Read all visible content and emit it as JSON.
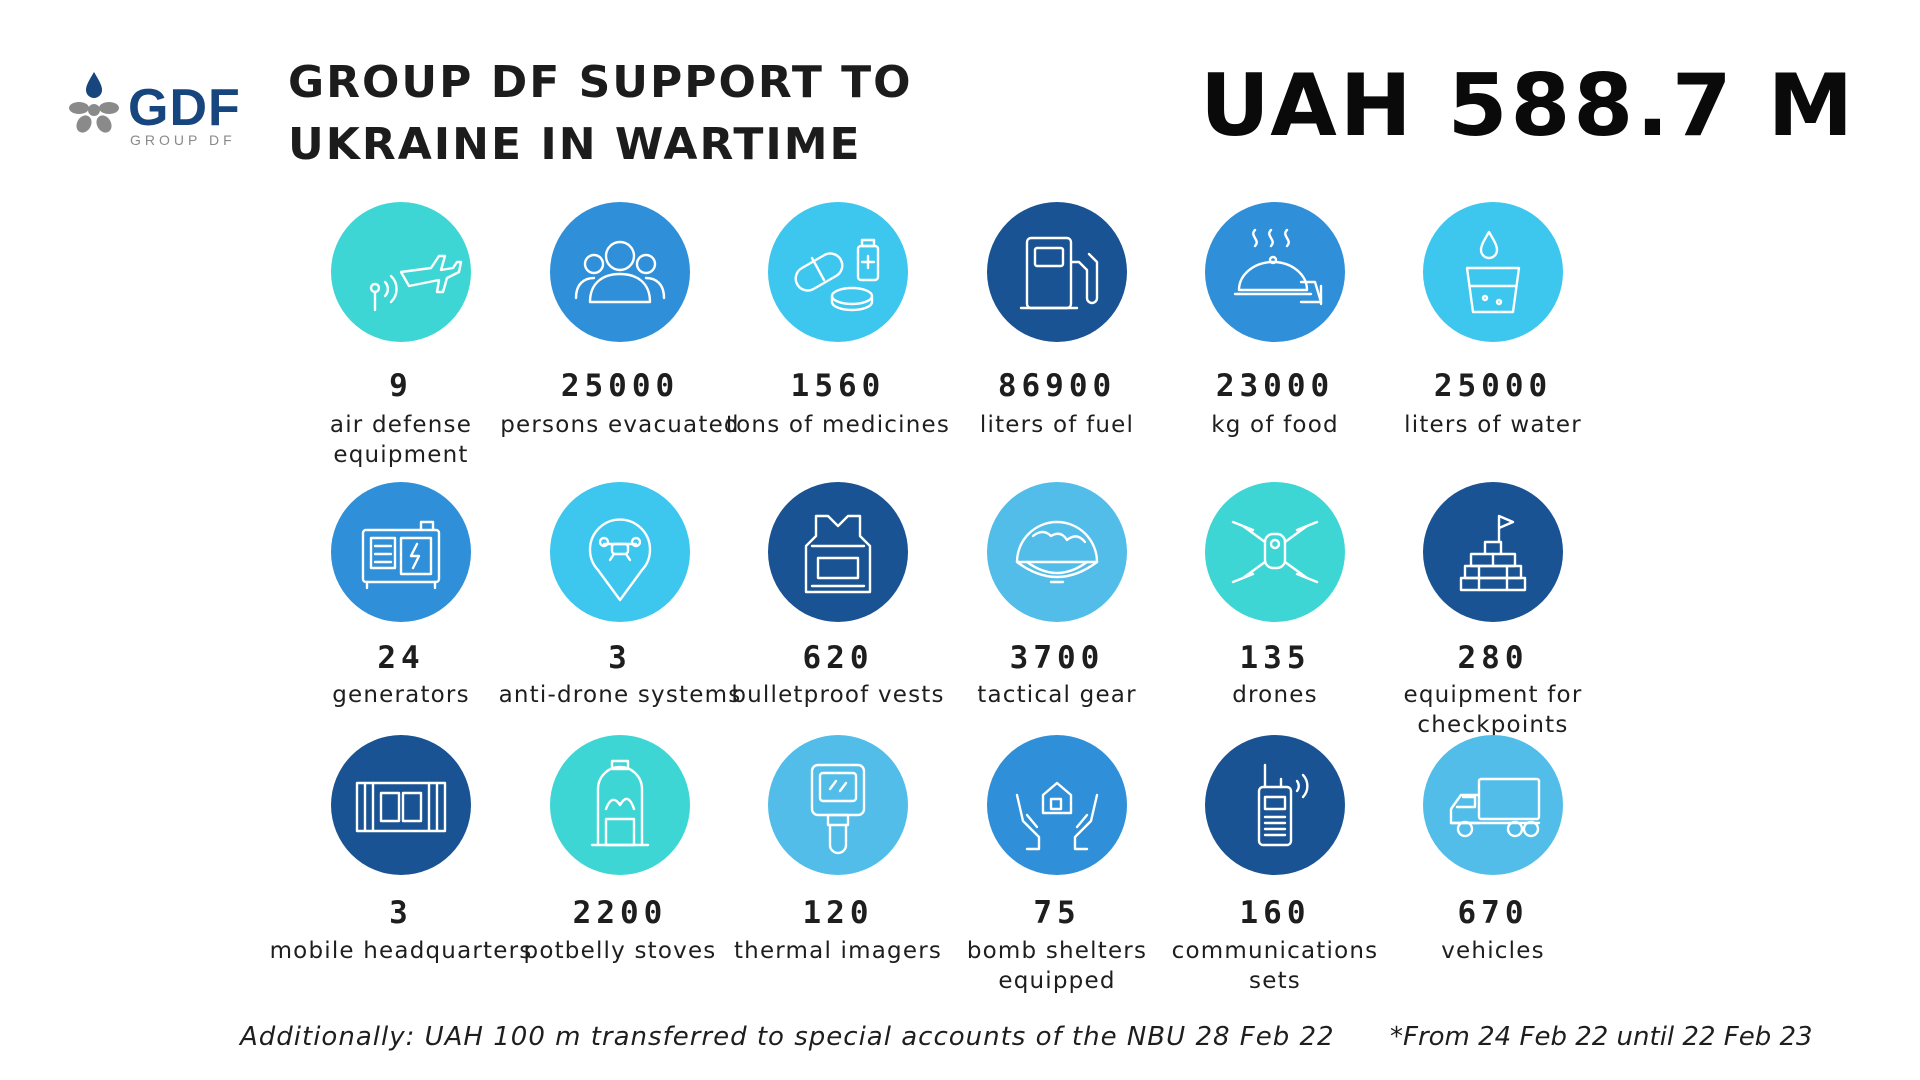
{
  "logo": {
    "text": "GDF",
    "subtext": "GROUP DF"
  },
  "title": {
    "line1": "GROUP DF SUPPORT TO",
    "line2": "UKRAINE IN WARTIME"
  },
  "total": "UAH 588.7 M",
  "colors": {
    "teal": "#3ed6d4",
    "sky": "#3dc7ef",
    "mid": "#2f8fd8",
    "light": "#52bde8",
    "navy": "#1a5393",
    "brand": "#17457d"
  },
  "items": [
    {
      "value": "9",
      "label": [
        "air defense equipment"
      ],
      "icon": "air-defense-icon",
      "color": "#3ed6d4"
    },
    {
      "value": "25000",
      "label": [
        "persons evacuated"
      ],
      "icon": "people-icon",
      "color": "#2f8fd8"
    },
    {
      "value": "1560",
      "label": [
        "tons of medicines"
      ],
      "icon": "medicine-icon",
      "color": "#3dc7ef"
    },
    {
      "value": "86900",
      "label": [
        "liters of fuel"
      ],
      "icon": "fuel-pump-icon",
      "color": "#1a5393"
    },
    {
      "value": "23000",
      "label": [
        "kg of food"
      ],
      "icon": "food-cloche-icon",
      "color": "#2f8fd8"
    },
    {
      "value": "25000",
      "label": [
        "liters of water"
      ],
      "icon": "water-glass-icon",
      "color": "#3dc7ef"
    },
    {
      "value": "24",
      "label": [
        "generators"
      ],
      "icon": "generator-icon",
      "color": "#2f8fd8"
    },
    {
      "value": "3",
      "label": [
        "anti-drone systems"
      ],
      "icon": "anti-drone-pin-icon",
      "color": "#3dc7ef"
    },
    {
      "value": "620",
      "label": [
        "bulletproof vests"
      ],
      "icon": "bulletproof-vest-icon",
      "color": "#1a5393"
    },
    {
      "value": "3700",
      "label": [
        "tactical gear"
      ],
      "icon": "helmet-icon",
      "color": "#52bde8"
    },
    {
      "value": "135",
      "label": [
        "drones"
      ],
      "icon": "drone-icon",
      "color": "#3ed6d4"
    },
    {
      "value": "280",
      "label": [
        "equipment for checkpoints"
      ],
      "icon": "checkpoint-icon",
      "color": "#1a5393"
    },
    {
      "value": "3",
      "label": [
        "mobile headquarters"
      ],
      "icon": "container-icon",
      "color": "#1a5393"
    },
    {
      "value": "2200",
      "label": [
        "potbelly stoves"
      ],
      "icon": "stove-icon",
      "color": "#3ed6d4"
    },
    {
      "value": "120",
      "label": [
        "thermal imagers"
      ],
      "icon": "thermal-imager-icon",
      "color": "#52bde8"
    },
    {
      "value": "75",
      "label": [
        "bomb shelters",
        "equipped"
      ],
      "icon": "shelter-hands-icon",
      "color": "#2f8fd8"
    },
    {
      "value": "160",
      "label": [
        "communications",
        "sets"
      ],
      "icon": "radio-icon",
      "color": "#1a5393"
    },
    {
      "value": "670",
      "label": [
        "vehicles"
      ],
      "icon": "truck-icon",
      "color": "#52bde8"
    }
  ],
  "footer": {
    "left": "Additionally: UAH 100 m transferred to special accounts of the NBU 28 Feb 22",
    "right": "*From 24 Feb 22 until 22 Feb 23"
  }
}
